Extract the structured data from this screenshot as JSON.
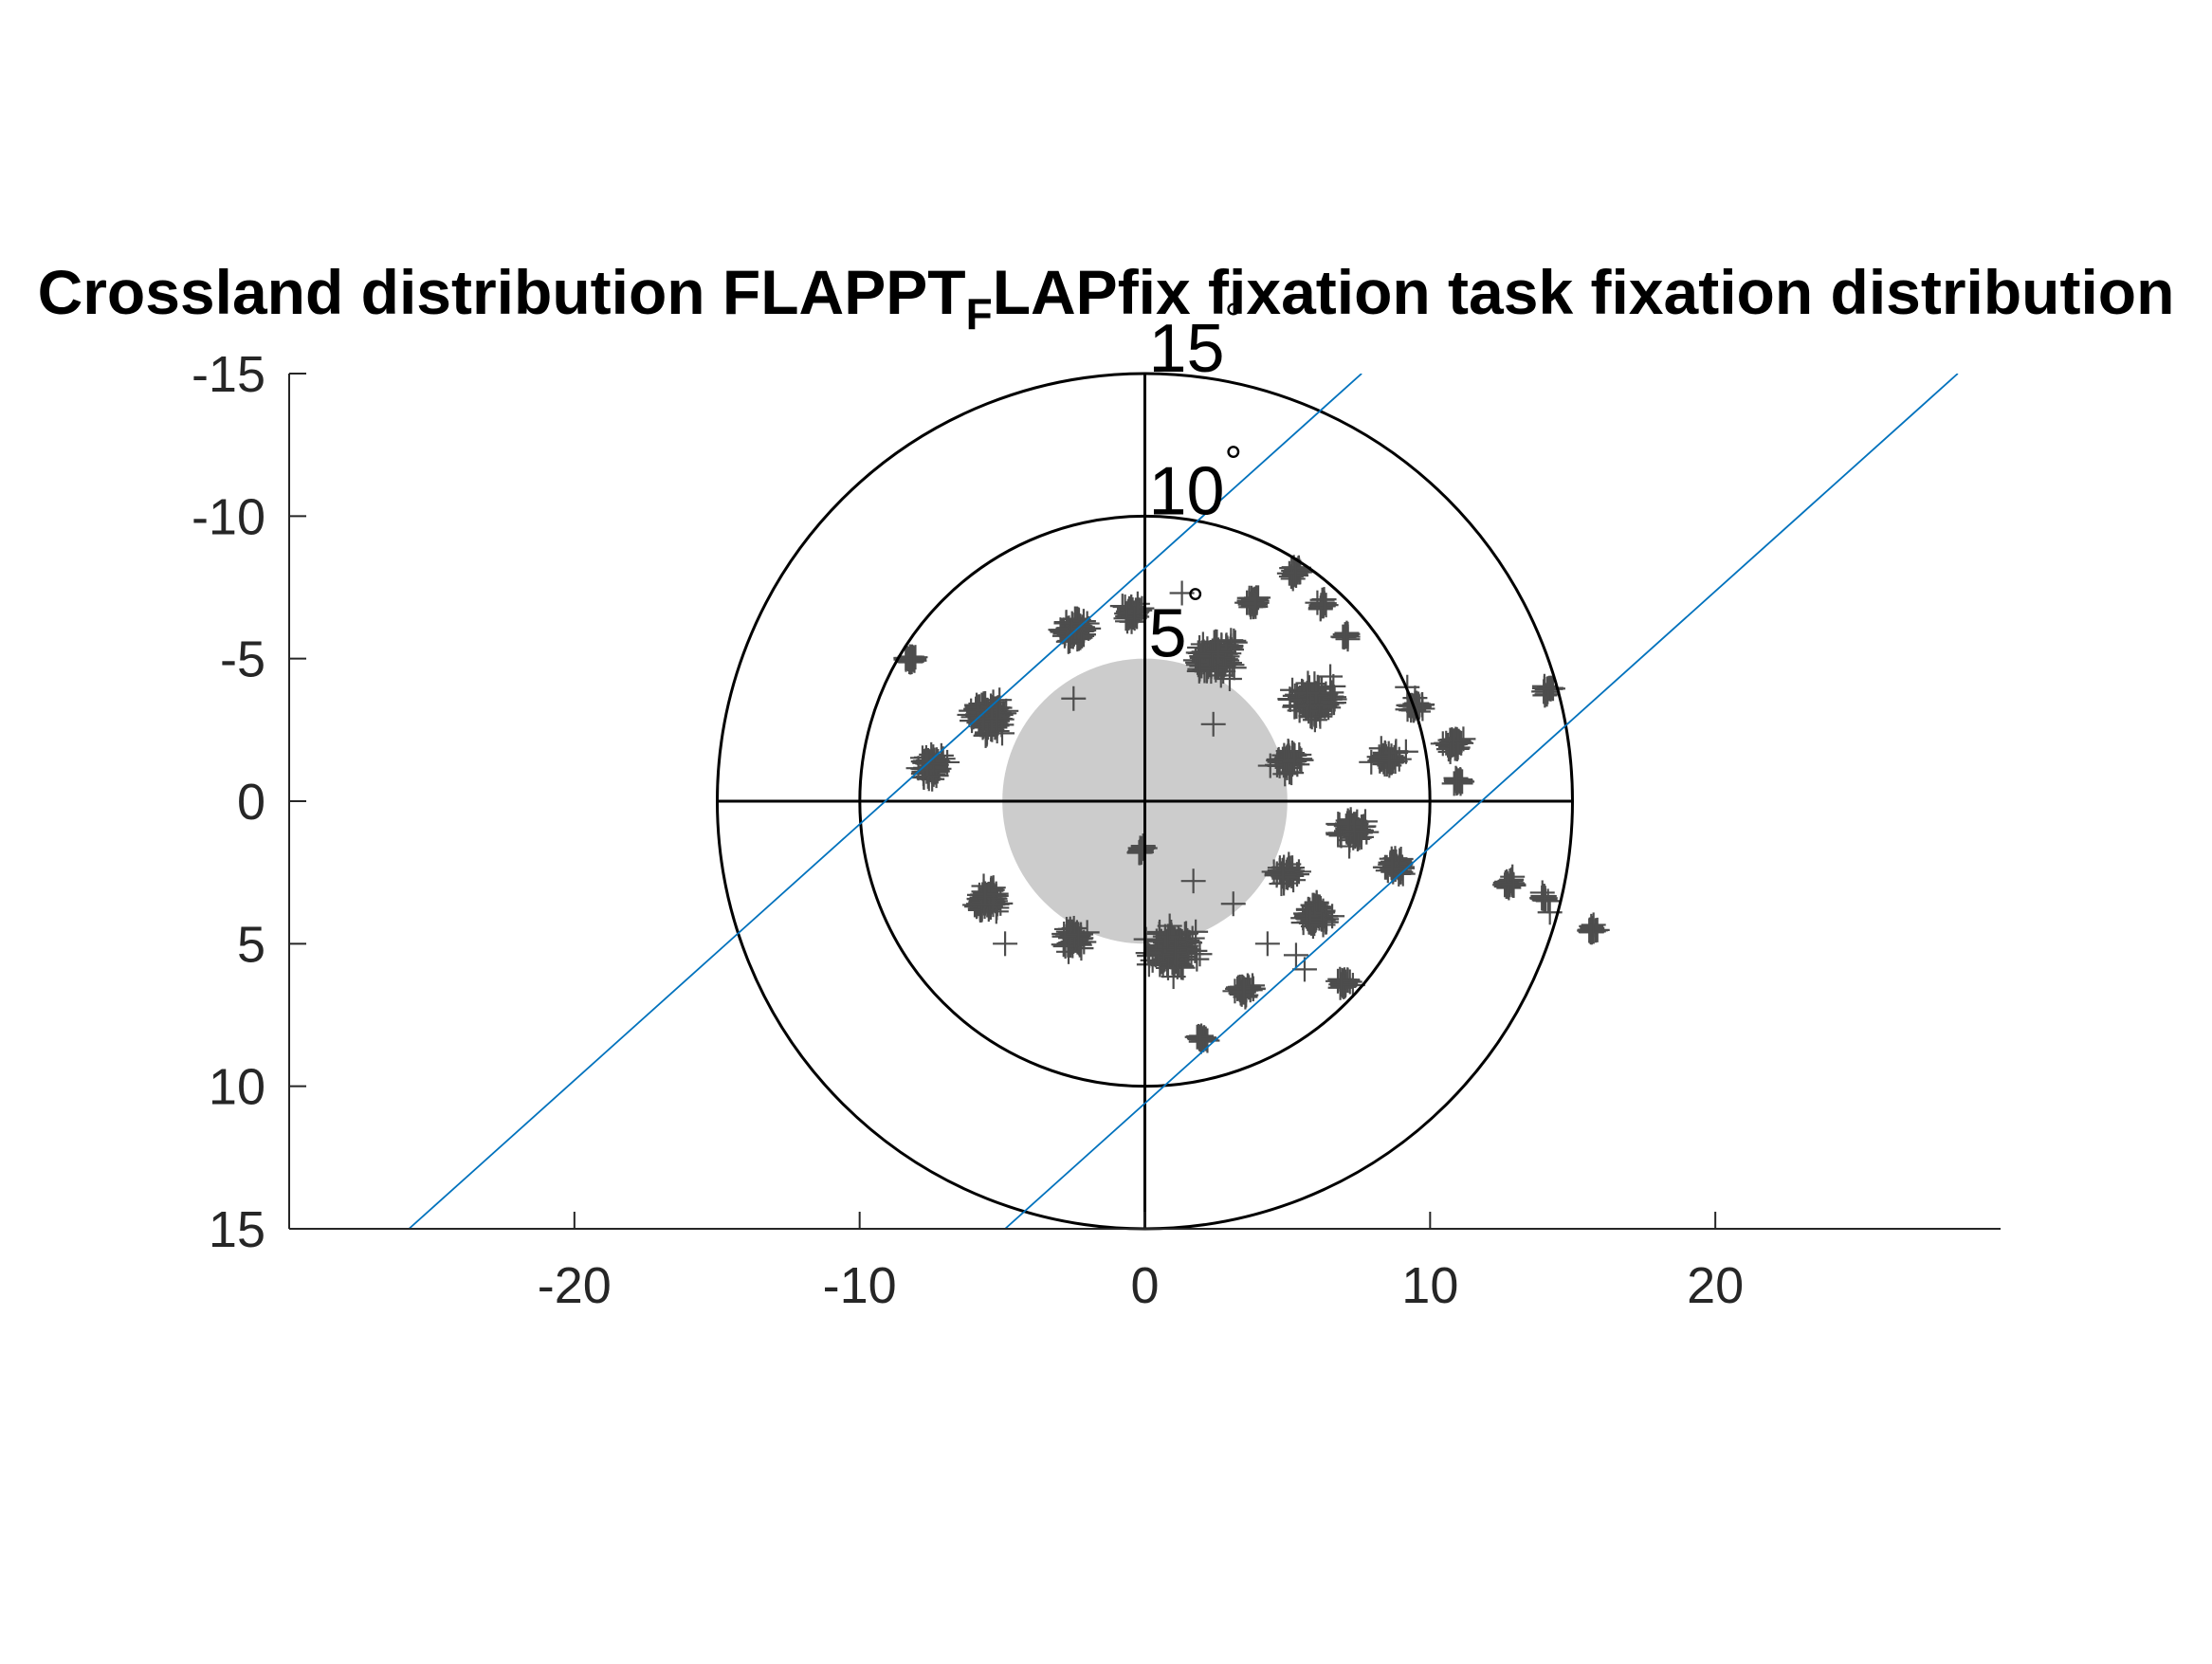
{
  "chart_data": {
    "type": "scatter",
    "title": {
      "main": "Crossland distribution FLAPPT",
      "subscript": "F",
      "rest": "LAPfix fixation task fixation distribution"
    },
    "xlabel": "",
    "ylabel": "",
    "xlim": [
      -30,
      30
    ],
    "ylim": [
      -15,
      15
    ],
    "y_reversed": true,
    "x_ticks": [
      -20,
      -10,
      0,
      10,
      20
    ],
    "x_tick_labels": [
      "-20",
      "-10",
      "0",
      "10",
      "20"
    ],
    "y_ticks": [
      -15,
      -10,
      -5,
      0,
      5,
      10,
      15
    ],
    "y_tick_labels": [
      "-15",
      "-10",
      "-5",
      "0",
      "5",
      "10",
      "15"
    ],
    "grid": false,
    "legend": "none",
    "marker": "plus",
    "marker_color": "#4d4d4d",
    "polar_rings": [
      {
        "radius": 5,
        "label": "5",
        "unit": "°",
        "drawn": false
      },
      {
        "radius": 10,
        "label": "10",
        "unit": "°",
        "drawn": true
      },
      {
        "radius": 15,
        "label": "15",
        "unit": "°",
        "drawn": true
      }
    ],
    "ring_color": "#000000",
    "shaded_disk": {
      "cx": 0,
      "cy": 0,
      "r": 5,
      "color": "#cccccc"
    },
    "crosshair": {
      "x_range": [
        -15,
        15
      ],
      "y_range": [
        -15,
        15
      ]
    },
    "reference_lines": [
      {
        "from": [
          -25.8,
          15
        ],
        "to": [
          7.6,
          -15
        ],
        "color": "#0072bd"
      },
      {
        "from": [
          -4.9,
          15
        ],
        "to": [
          28.5,
          -15
        ],
        "color": "#0072bd"
      }
    ],
    "clusters": [
      {
        "x": -8.2,
        "y": -5.0,
        "n": 25,
        "spread": 0.35
      },
      {
        "x": -7.5,
        "y": -1.2,
        "n": 70,
        "spread": 0.8
      },
      {
        "x": -5.5,
        "y": -3.0,
        "n": 110,
        "spread": 1.2
      },
      {
        "x": -2.5,
        "y": -6.0,
        "n": 60,
        "spread": 1.0
      },
      {
        "x": -0.5,
        "y": -6.6,
        "n": 40,
        "spread": 0.6
      },
      {
        "x": 2.5,
        "y": -5.0,
        "n": 110,
        "spread": 1.3
      },
      {
        "x": 3.8,
        "y": -7.0,
        "n": 25,
        "spread": 0.5
      },
      {
        "x": 5.3,
        "y": -8.0,
        "n": 25,
        "spread": 0.4
      },
      {
        "x": 6.2,
        "y": -6.9,
        "n": 15,
        "spread": 0.35
      },
      {
        "x": 7.0,
        "y": -5.8,
        "n": 10,
        "spread": 0.3
      },
      {
        "x": 6.0,
        "y": -3.5,
        "n": 110,
        "spread": 1.3
      },
      {
        "x": 5.0,
        "y": -1.5,
        "n": 50,
        "spread": 0.9
      },
      {
        "x": 8.5,
        "y": -1.5,
        "n": 40,
        "spread": 0.8
      },
      {
        "x": 9.5,
        "y": -3.3,
        "n": 25,
        "spread": 0.5
      },
      {
        "x": 10.8,
        "y": -2.0,
        "n": 35,
        "spread": 0.6
      },
      {
        "x": 11.0,
        "y": -0.7,
        "n": 15,
        "spread": 0.3
      },
      {
        "x": 7.3,
        "y": 1.0,
        "n": 70,
        "spread": 0.9
      },
      {
        "x": 8.8,
        "y": 2.3,
        "n": 40,
        "spread": 0.7
      },
      {
        "x": 5.0,
        "y": 2.5,
        "n": 40,
        "spread": 0.7
      },
      {
        "x": 6.0,
        "y": 4.0,
        "n": 70,
        "spread": 1.0
      },
      {
        "x": 7.0,
        "y": 6.4,
        "n": 25,
        "spread": 0.5
      },
      {
        "x": 3.5,
        "y": 6.6,
        "n": 30,
        "spread": 0.5
      },
      {
        "x": 2.0,
        "y": 8.3,
        "n": 15,
        "spread": 0.3
      },
      {
        "x": 1.0,
        "y": 5.2,
        "n": 170,
        "spread": 1.4
      },
      {
        "x": -2.5,
        "y": 4.8,
        "n": 50,
        "spread": 0.8
      },
      {
        "x": -5.5,
        "y": 3.5,
        "n": 70,
        "spread": 0.9
      },
      {
        "x": -0.1,
        "y": 1.7,
        "n": 15,
        "spread": 0.3
      },
      {
        "x": 12.8,
        "y": 2.9,
        "n": 25,
        "spread": 0.45
      },
      {
        "x": 14.0,
        "y": 3.4,
        "n": 15,
        "spread": 0.35
      },
      {
        "x": 15.7,
        "y": 4.5,
        "n": 15,
        "spread": 0.3
      },
      {
        "x": 14.2,
        "y": -3.9,
        "n": 15,
        "spread": 0.35
      }
    ],
    "points": [
      [
        -4.9,
        5.0
      ],
      [
        -2.5,
        -3.6
      ],
      [
        2.4,
        -2.7
      ],
      [
        1.7,
        2.8
      ],
      [
        3.1,
        3.6
      ],
      [
        5.3,
        5.4
      ],
      [
        5.6,
        5.9
      ],
      [
        9.2,
        -4.0
      ],
      [
        14.2,
        3.9
      ],
      [
        -0.2,
        1.8
      ],
      [
        4.3,
        5.0
      ],
      [
        1.3,
        -7.3
      ]
    ]
  }
}
